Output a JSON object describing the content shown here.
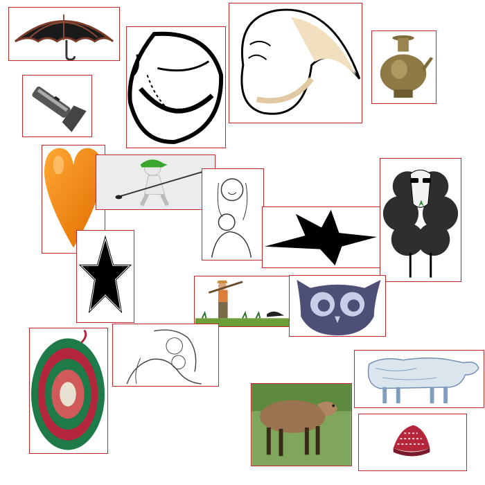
{
  "colors": {
    "frame": "#c0282a",
    "orange_heart": "#f5890c",
    "star_black": "#000000",
    "owl_purple": "#4e4f77",
    "sheep_dark": "#2e2e2e",
    "grass_green": "#6e9e3a",
    "cap_green": "#3aa62e",
    "basket_red": "#b3263b",
    "basket_green": "#1f7a4a"
  },
  "tiles": [
    {
      "icon": "umbrella-icon"
    },
    {
      "icon": "conch-shell-outline-icon"
    },
    {
      "icon": "conch-shell-cream-icon"
    },
    {
      "icon": "brass-pot-icon"
    },
    {
      "icon": "flashlight-icon"
    },
    {
      "icon": "orange-heart-icon"
    },
    {
      "icon": "golfer-figure-icon"
    },
    {
      "icon": "mother-child-sketch-icon"
    },
    {
      "icon": "black-star-icon"
    },
    {
      "icon": "black-sheep-icon"
    },
    {
      "icon": "outlined-star-icon"
    },
    {
      "icon": "farmer-hoe-icon"
    },
    {
      "icon": "owl-icon"
    },
    {
      "icon": "woven-basket-icon"
    },
    {
      "icon": "mother-child-drawing-icon"
    },
    {
      "icon": "sheep-sketch-icon"
    },
    {
      "icon": "brown-sheep-photo-icon"
    },
    {
      "icon": "embroidered-cap-icon"
    }
  ]
}
